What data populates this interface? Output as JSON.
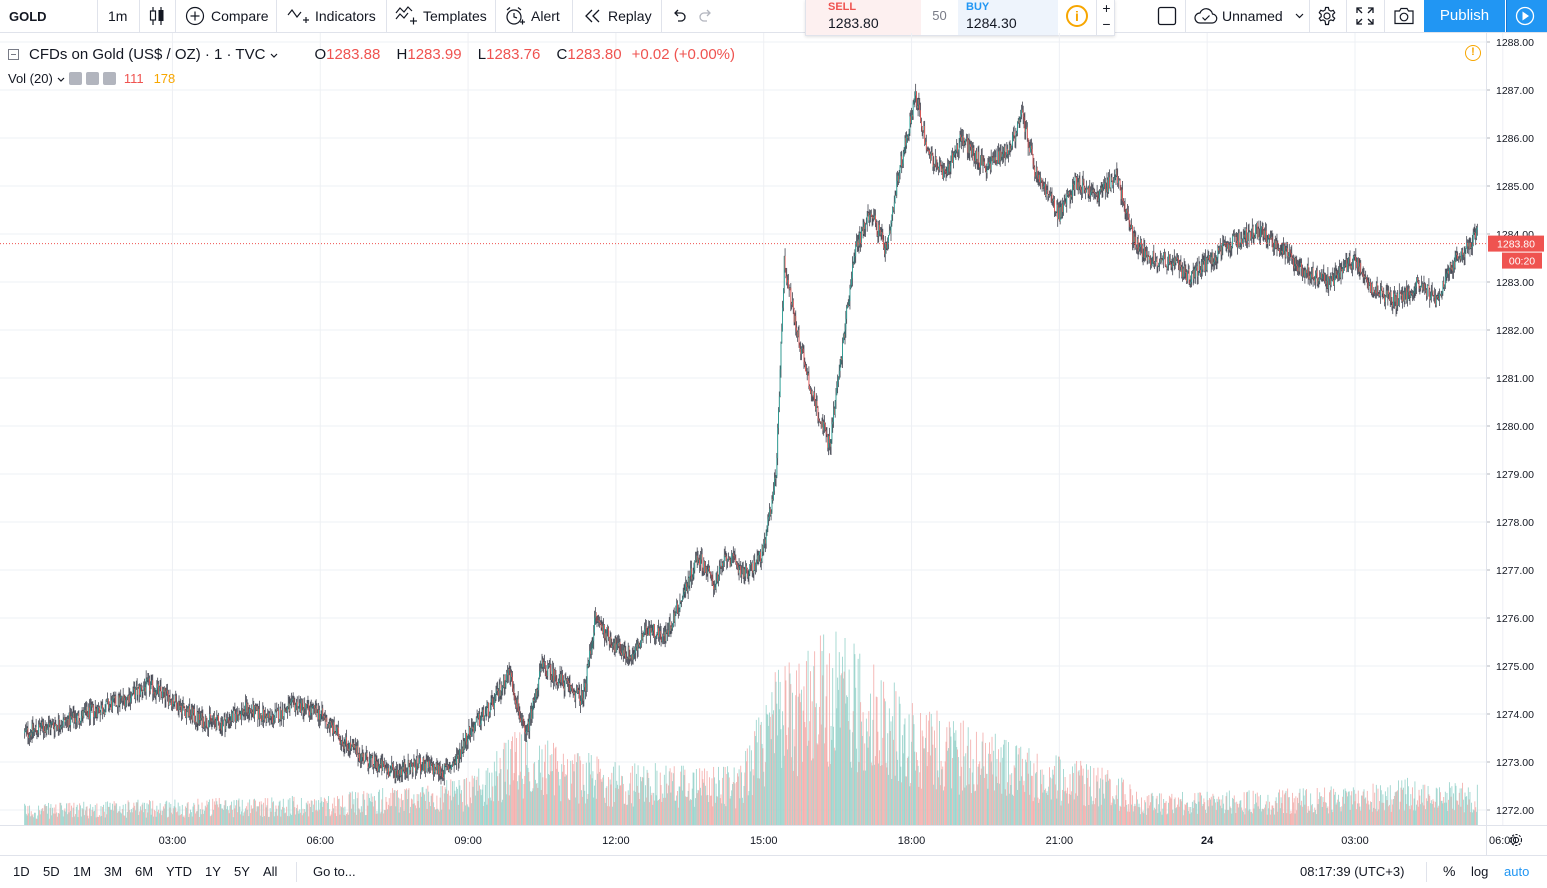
{
  "toolbar": {
    "symbol": "GOLD",
    "interval": "1m",
    "compare_label": "Compare",
    "indicators_label": "Indicators",
    "templates_label": "Templates",
    "alert_label": "Alert",
    "replay_label": "Replay",
    "layout_name": "Unnamed",
    "publish_label": "Publish"
  },
  "trade": {
    "sell_label": "SELL",
    "sell_price": "1283.80",
    "spread": "50",
    "buy_label": "BUY",
    "buy_price": "1284.30",
    "plus": "+",
    "minus": "−"
  },
  "legend": {
    "title": "CFDs on Gold (US$ / OZ) · 1 · TVC",
    "o_label": "O",
    "o_value": "1283.88",
    "h_label": "H",
    "h_value": "1283.99",
    "l_label": "L",
    "l_value": "1283.76",
    "c_label": "C",
    "c_value": "1283.80",
    "change": "+0.02 (+0.00%)"
  },
  "volume_legend": {
    "title": "Vol (20)",
    "value1": "111",
    "value2": "178"
  },
  "price_axis": {
    "labels": [
      "1288.00",
      "1287.00",
      "1286.00",
      "1285.00",
      "1284.00",
      "1283.00",
      "1282.00",
      "1281.00",
      "1280.00",
      "1279.00",
      "1278.00",
      "1277.00",
      "1276.00",
      "1275.00",
      "1274.00",
      "1273.00",
      "1272.00"
    ],
    "current_price": "1283.80",
    "countdown": "00:20"
  },
  "time_axis": {
    "labels": [
      "03:00",
      "06:00",
      "09:00",
      "12:00",
      "15:00",
      "18:00",
      "21:00",
      "24",
      "03:00",
      "06:00"
    ]
  },
  "bottombar": {
    "ranges": [
      "1D",
      "5D",
      "1M",
      "3M",
      "6M",
      "YTD",
      "1Y",
      "5Y",
      "All"
    ],
    "goto_label": "Go to...",
    "clock": "08:17:39 (UTC+3)",
    "percent_label": "%",
    "log_label": "log",
    "auto_label": "auto"
  },
  "colors": {
    "up": "#26a69a",
    "down": "#ef5350",
    "wick": "#434651",
    "vol_up": "#9fd6cf",
    "vol_down": "#f4b3b1",
    "price_line": "#ef5350",
    "grid": "#eef0f4",
    "accent": "#2196f3"
  },
  "chart_data": {
    "type": "candlestick",
    "symbol": "GOLD",
    "interval": "1m",
    "ylim": [
      1271.8,
      1288.2
    ],
    "current_price": 1283.8,
    "close_path": [
      {
        "t": "00:00",
        "close": 1273.6
      },
      {
        "t": "01:00",
        "close": 1273.9
      },
      {
        "t": "02:00",
        "close": 1274.3
      },
      {
        "t": "02:30",
        "close": 1274.6
      },
      {
        "t": "03:00",
        "close": 1274.3
      },
      {
        "t": "03:30",
        "close": 1273.9
      },
      {
        "t": "04:00",
        "close": 1273.8
      },
      {
        "t": "04:30",
        "close": 1274.1
      },
      {
        "t": "05:00",
        "close": 1273.9
      },
      {
        "t": "05:30",
        "close": 1274.2
      },
      {
        "t": "06:00",
        "close": 1274.0
      },
      {
        "t": "06:30",
        "close": 1273.4
      },
      {
        "t": "07:00",
        "close": 1273.0
      },
      {
        "t": "07:30",
        "close": 1272.8
      },
      {
        "t": "08:00",
        "close": 1272.95
      },
      {
        "t": "08:30",
        "close": 1272.8
      },
      {
        "t": "08:45",
        "close": 1273.0
      },
      {
        "t": "09:00",
        "close": 1273.6
      },
      {
        "t": "09:30",
        "close": 1274.2
      },
      {
        "t": "09:50",
        "close": 1274.9
      },
      {
        "t": "10:10",
        "close": 1273.5
      },
      {
        "t": "10:30",
        "close": 1275.0
      },
      {
        "t": "11:00",
        "close": 1274.6
      },
      {
        "t": "11:20",
        "close": 1274.3
      },
      {
        "t": "11:35",
        "close": 1276.0
      },
      {
        "t": "12:00",
        "close": 1275.4
      },
      {
        "t": "12:20",
        "close": 1275.2
      },
      {
        "t": "12:40",
        "close": 1275.8
      },
      {
        "t": "13:00",
        "close": 1275.6
      },
      {
        "t": "13:20",
        "close": 1276.4
      },
      {
        "t": "13:40",
        "close": 1277.3
      },
      {
        "t": "14:00",
        "close": 1276.7
      },
      {
        "t": "14:15",
        "close": 1277.3
      },
      {
        "t": "14:40",
        "close": 1276.9
      },
      {
        "t": "15:00",
        "close": 1277.4
      },
      {
        "t": "15:15",
        "close": 1279.0
      },
      {
        "t": "15:25",
        "close": 1283.4
      },
      {
        "t": "15:40",
        "close": 1282.0
      },
      {
        "t": "16:00",
        "close": 1280.6
      },
      {
        "t": "16:20",
        "close": 1279.6
      },
      {
        "t": "16:35",
        "close": 1281.5
      },
      {
        "t": "16:50",
        "close": 1283.6
      },
      {
        "t": "17:10",
        "close": 1284.5
      },
      {
        "t": "17:30",
        "close": 1283.6
      },
      {
        "t": "17:45",
        "close": 1285.3
      },
      {
        "t": "18:05",
        "close": 1286.9
      },
      {
        "t": "18:20",
        "close": 1285.7
      },
      {
        "t": "18:40",
        "close": 1285.2
      },
      {
        "t": "19:00",
        "close": 1286.0
      },
      {
        "t": "19:30",
        "close": 1285.4
      },
      {
        "t": "20:00",
        "close": 1285.8
      },
      {
        "t": "20:15",
        "close": 1286.5
      },
      {
        "t": "20:30",
        "close": 1285.3
      },
      {
        "t": "21:00",
        "close": 1284.4
      },
      {
        "t": "21:20",
        "close": 1285.1
      },
      {
        "t": "21:45",
        "close": 1284.8
      },
      {
        "t": "22:10",
        "close": 1285.2
      },
      {
        "t": "22:30",
        "close": 1283.9
      },
      {
        "t": "22:50",
        "close": 1283.5
      },
      {
        "t": "23:20",
        "close": 1283.4
      },
      {
        "t": "23:40",
        "close": 1283.1
      },
      {
        "t": "00:00",
        "close": 1283.4
      },
      {
        "t": "00:30",
        "close": 1283.8
      },
      {
        "t": "01:00",
        "close": 1284.1
      },
      {
        "t": "01:30",
        "close": 1283.7
      },
      {
        "t": "02:00",
        "close": 1283.2
      },
      {
        "t": "02:30",
        "close": 1283.0
      },
      {
        "t": "03:00",
        "close": 1283.5
      },
      {
        "t": "03:20",
        "close": 1282.9
      },
      {
        "t": "03:50",
        "close": 1282.6
      },
      {
        "t": "04:20",
        "close": 1283.0
      },
      {
        "t": "04:40",
        "close": 1282.6
      },
      {
        "t": "05:00",
        "close": 1283.4
      },
      {
        "t": "05:30",
        "close": 1284.0
      },
      {
        "t": "05:50",
        "close": 1284.4
      },
      {
        "t": "06:10",
        "close": 1283.9
      },
      {
        "t": "06:40",
        "close": 1283.4
      },
      {
        "t": "07:00",
        "close": 1283.6
      },
      {
        "t": "07:20",
        "close": 1283.3
      },
      {
        "t": "07:40",
        "close": 1283.8
      }
    ],
    "volume_path": [
      {
        "t": "00:00",
        "volume": 20
      },
      {
        "t": "03:00",
        "volume": 25
      },
      {
        "t": "06:00",
        "volume": 28
      },
      {
        "t": "09:00",
        "volume": 45
      },
      {
        "t": "10:00",
        "volume": 90
      },
      {
        "t": "12:00",
        "volume": 60
      },
      {
        "t": "14:30",
        "volume": 55
      },
      {
        "t": "15:15",
        "volume": 150
      },
      {
        "t": "16:30",
        "volume": 190
      },
      {
        "t": "18:00",
        "volume": 120
      },
      {
        "t": "20:30",
        "volume": 70
      },
      {
        "t": "22:00",
        "volume": 55
      },
      {
        "t": "22:40",
        "volume": 30
      },
      {
        "t": "02:00",
        "volume": 35
      },
      {
        "t": "04:00",
        "volume": 45
      },
      {
        "t": "07:40",
        "volume": 30
      }
    ]
  }
}
